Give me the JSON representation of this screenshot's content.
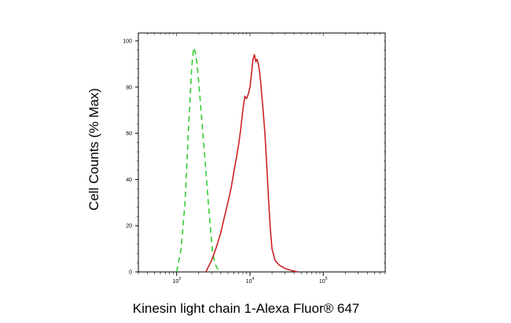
{
  "chart_data": {
    "type": "line",
    "xlabel": "Kinesin light chain 1-Alexa Fluor® 647",
    "ylabel": "Cell Counts (% Max)",
    "x_scale": "log",
    "xlim": [
      300,
      700000
    ],
    "ylim": [
      0,
      100
    ],
    "y_ticks": [
      "0",
      "20",
      "40",
      "60",
      "80",
      "100"
    ],
    "x_ticks": [
      {
        "value": 1000,
        "base": "10",
        "exp": "3"
      },
      {
        "value": 10000,
        "base": "10",
        "exp": "4"
      },
      {
        "value": 100000,
        "base": "10",
        "exp": "5"
      }
    ],
    "grid": false,
    "legend": "none",
    "series": [
      {
        "style": "dashed",
        "color": "#33cc33",
        "x": [
          1000,
          1150,
          1300,
          1450,
          1600,
          1700,
          1800,
          1900,
          2000,
          2150,
          2300,
          2500,
          2700,
          2900,
          3100,
          3400,
          3800
        ],
        "y": [
          0,
          10,
          30,
          62,
          88,
          97,
          95,
          90,
          82,
          70,
          58,
          44,
          30,
          18,
          8,
          3,
          0
        ]
      },
      {
        "style": "solid",
        "color": "#cc2222",
        "x": [
          2500,
          3000,
          3500,
          4000,
          4500,
          5000,
          5500,
          6000,
          6500,
          7000,
          7500,
          8000,
          8500,
          9000,
          9500,
          10000,
          10500,
          11000,
          11500,
          12000,
          12500,
          13000,
          13500,
          14000,
          15000,
          16000,
          17000,
          18000,
          19000,
          20000,
          22000,
          25000,
          30000,
          38000,
          45000
        ],
        "y": [
          0,
          5,
          11,
          17,
          24,
          30,
          36,
          43,
          49,
          55,
          62,
          70,
          76,
          75,
          77,
          80,
          86,
          92,
          94,
          91,
          92,
          90,
          87,
          82,
          71,
          60,
          45,
          30,
          18,
          10,
          5,
          3,
          1.5,
          0.5,
          0
        ]
      }
    ]
  }
}
